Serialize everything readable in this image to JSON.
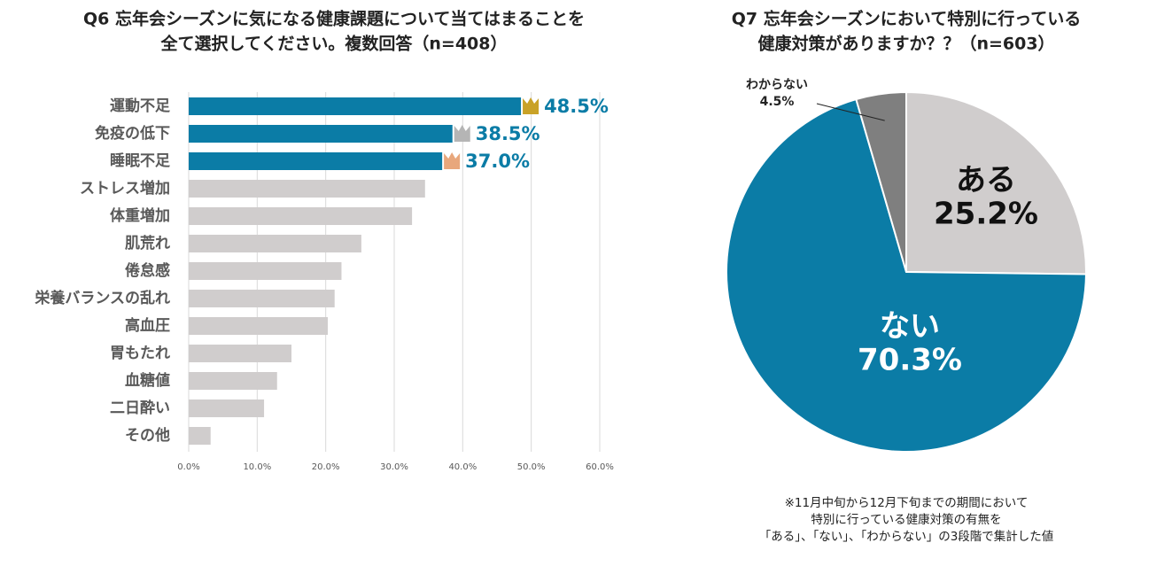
{
  "chart_data": [
    {
      "type": "barh",
      "title": [
        "Q6 忘年会シーズンに気になる健康課題について当てはまることを",
        "全て選択してください。複数回答（n=408）"
      ],
      "categories": [
        "運動不足",
        "免疫の低下",
        "睡眠不足",
        "ストレス増加",
        "体重増加",
        "肌荒れ",
        "倦怠感",
        "栄養バランスの乱れ",
        "高血圧",
        "胃もたれ",
        "血糖値",
        "二日酔い",
        "その他"
      ],
      "values": [
        48.5,
        38.5,
        37.0,
        34.5,
        32.6,
        25.2,
        22.3,
        21.3,
        20.3,
        15.0,
        12.9,
        11.0,
        3.2
      ],
      "value_labels": [
        "48.5%",
        "38.5%",
        "37.0%",
        null,
        null,
        null,
        null,
        null,
        null,
        null,
        null,
        null,
        null
      ],
      "colors": [
        "#0b7ca6",
        "#0b7ca6",
        "#0b7ca6",
        "#d0cdcd",
        "#d0cdcd",
        "#d0cdcd",
        "#d0cdcd",
        "#d0cdcd",
        "#d0cdcd",
        "#d0cdcd",
        "#d0cdcd",
        "#d0cdcd",
        "#d0cdcd"
      ],
      "xlim": [
        0,
        60
      ],
      "xticks": [
        {
          "value": 0,
          "label": "0.0%"
        },
        {
          "value": 10,
          "label": "10.0%"
        },
        {
          "value": 20,
          "label": "20.0%"
        },
        {
          "value": 30,
          "label": "30.0%"
        },
        {
          "value": 40,
          "label": "40.0%"
        },
        {
          "value": 50,
          "label": "50.0%"
        },
        {
          "value": 60,
          "label": "60.0%"
        }
      ],
      "grid": true
    },
    {
      "type": "pie",
      "title": [
        "Q7 忘年会シーズンにおいて特別に行っている",
        "健康対策がありますか？？（n=603）"
      ],
      "categories": [
        "ある",
        "ない",
        "わからない"
      ],
      "values": [
        25.2,
        70.3,
        4.5
      ],
      "value_labels": [
        "25.2%",
        "70.3%",
        "4.5%"
      ],
      "colors": [
        "#d0cdcd",
        "#0b7ca6",
        "#7f7f7f"
      ],
      "notes": [
        "※11月中旬から12月下旬までの期間において",
        "特別に行っている健康対策の有無を",
        "「ある」、「ない」、「わからない」の3段階で集計した値"
      ]
    }
  ]
}
